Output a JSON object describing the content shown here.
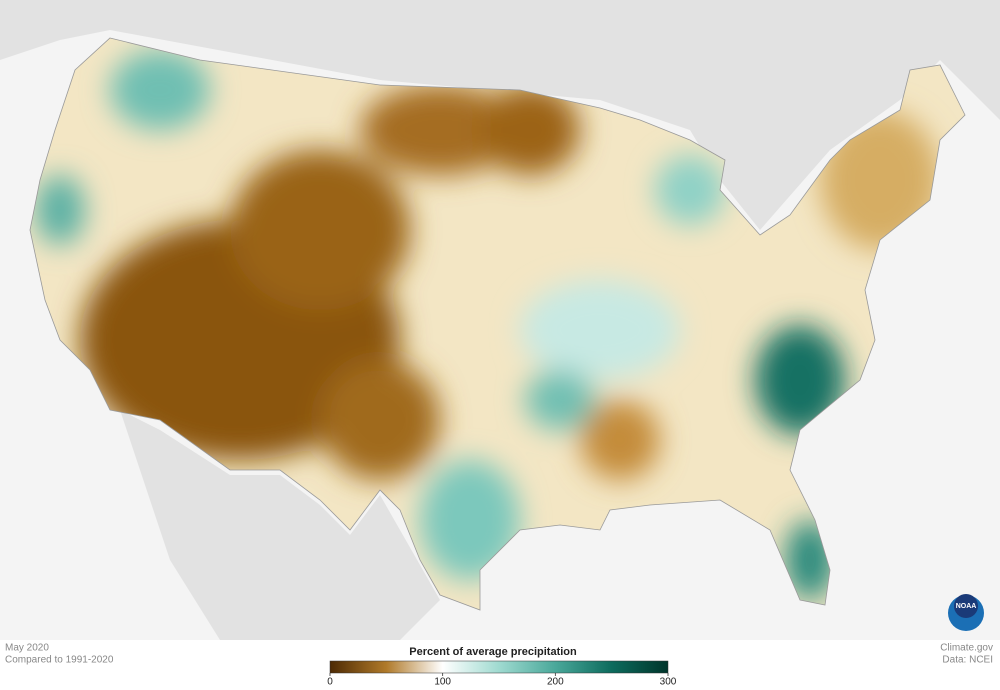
{
  "map": {
    "date": "May 2020",
    "baseline": "Compared to 1991-2020",
    "legend": {
      "title": "Percent of average precipitation",
      "lim": [
        0,
        300
      ],
      "ticks": [
        0,
        100,
        200,
        300
      ],
      "colors": [
        "#4d2a04",
        "#b07a2a",
        "#ffffff",
        "#9fdad0",
        "#4aa89a",
        "#0d6b5d",
        "#00352b"
      ]
    }
  },
  "credits": {
    "site": "Climate.gov",
    "source": "Data: NCEI"
  },
  "logo": "NOAA"
}
